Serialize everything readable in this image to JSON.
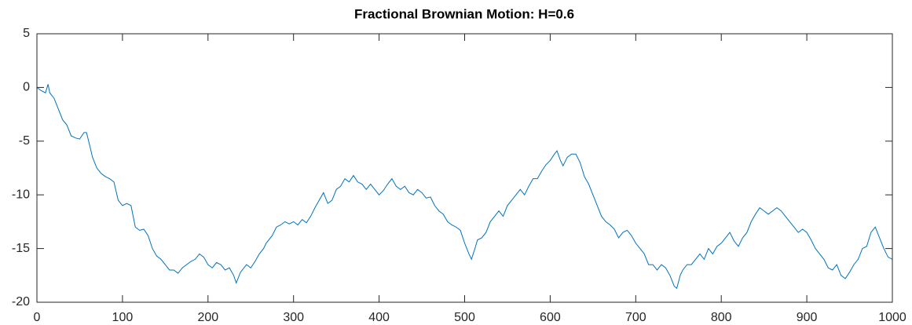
{
  "chart_data": {
    "type": "line",
    "title": "Fractional Brownian Motion: H=0.6",
    "color": "#0072bd",
    "x": [
      0,
      5,
      10,
      13,
      15,
      20,
      25,
      30,
      35,
      40,
      45,
      50,
      55,
      58,
      62,
      65,
      70,
      75,
      80,
      85,
      90,
      95,
      100,
      105,
      110,
      115,
      120,
      125,
      130,
      135,
      140,
      145,
      150,
      155,
      160,
      165,
      170,
      175,
      180,
      185,
      190,
      195,
      200,
      205,
      210,
      215,
      220,
      225,
      230,
      233,
      238,
      245,
      250,
      255,
      260,
      265,
      268,
      275,
      280,
      285,
      290,
      295,
      300,
      305,
      310,
      315,
      320,
      325,
      330,
      335,
      340,
      345,
      350,
      355,
      360,
      365,
      370,
      375,
      380,
      385,
      390,
      395,
      400,
      405,
      410,
      415,
      420,
      425,
      430,
      435,
      440,
      445,
      450,
      455,
      460,
      465,
      470,
      475,
      480,
      485,
      490,
      495,
      500,
      505,
      508,
      512,
      515,
      520,
      525,
      530,
      535,
      540,
      545,
      550,
      555,
      560,
      565,
      570,
      575,
      580,
      585,
      590,
      595,
      600,
      605,
      608,
      612,
      615,
      620,
      625,
      630,
      635,
      640,
      645,
      650,
      655,
      660,
      665,
      670,
      675,
      680,
      685,
      690,
      695,
      700,
      705,
      710,
      715,
      720,
      725,
      730,
      735,
      740,
      745,
      748,
      752,
      755,
      760,
      765,
      770,
      775,
      780,
      785,
      790,
      795,
      800,
      805,
      810,
      815,
      820,
      825,
      830,
      835,
      840,
      845,
      850,
      855,
      860,
      865,
      870,
      875,
      880,
      885,
      890,
      895,
      900,
      905,
      910,
      915,
      920,
      925,
      930,
      935,
      940,
      945,
      950,
      955,
      960,
      965,
      970,
      975,
      980,
      985,
      990,
      995,
      1000
    ],
    "values": [
      0,
      -0.3,
      -0.5,
      0.3,
      -0.5,
      -1,
      -2,
      -3,
      -3.5,
      -4.5,
      -4.7,
      -4.8,
      -4.2,
      -4.2,
      -5.5,
      -6.5,
      -7.5,
      -8,
      -8.3,
      -8.5,
      -8.8,
      -10.5,
      -11,
      -10.8,
      -11,
      -13,
      -13.3,
      -13.2,
      -13.8,
      -15,
      -15.7,
      -16,
      -16.5,
      -17,
      -17,
      -17.3,
      -16.8,
      -16.5,
      -16.2,
      -16,
      -15.5,
      -15.8,
      -16.5,
      -16.8,
      -16.3,
      -16.5,
      -17,
      -16.8,
      -17.5,
      -18.2,
      -17.2,
      -16.5,
      -16.8,
      -16.2,
      -15.5,
      -15,
      -14.5,
      -13.8,
      -13,
      -12.8,
      -12.5,
      -12.7,
      -12.5,
      -12.8,
      -12.3,
      -12.6,
      -12,
      -11.2,
      -10.5,
      -9.8,
      -10.8,
      -10.5,
      -9.5,
      -9.2,
      -8.5,
      -8.8,
      -8.2,
      -8.8,
      -9,
      -9.5,
      -9,
      -9.5,
      -10,
      -9.6,
      -9,
      -8.5,
      -9.2,
      -9.5,
      -9.2,
      -9.8,
      -10,
      -9.5,
      -9.8,
      -10.3,
      -10.2,
      -11,
      -11.5,
      -11.8,
      -12.5,
      -12.8,
      -13,
      -13.3,
      -14.5,
      -15.5,
      -16,
      -15,
      -14.2,
      -14,
      -13.5,
      -12.5,
      -12,
      -11.5,
      -12,
      -11,
      -10.5,
      -10,
      -9.5,
      -10,
      -9.2,
      -8.5,
      -8.5,
      -7.8,
      -7.2,
      -6.8,
      -6.2,
      -5.9,
      -6.8,
      -7.3,
      -6.5,
      -6.2,
      -6.2,
      -7,
      -8.3,
      -9,
      -10,
      -11,
      -12,
      -12.5,
      -12.8,
      -13.2,
      -14,
      -13.5,
      -13.3,
      -13.8,
      -14.5,
      -15,
      -15.5,
      -16.5,
      -16.5,
      -17,
      -16.5,
      -16.8,
      -17.5,
      -18.5,
      -18.7,
      -17.5,
      -17,
      -16.5,
      -16.5,
      -16,
      -15.5,
      -16,
      -15,
      -15.5,
      -14.8,
      -14.5,
      -14,
      -13.5,
      -14.3,
      -14.8,
      -14,
      -13.5,
      -12.5,
      -11.8,
      -11.2,
      -11.5,
      -11.8,
      -11.5,
      -11.2,
      -11.5,
      -12,
      -12.5,
      -13,
      -13.5,
      -13.2,
      -13.5,
      -14.2,
      -15,
      -15.5,
      -16,
      -16.8,
      -17,
      -16.5,
      -17.5,
      -17.8,
      -17.2,
      -16.5,
      -16,
      -15,
      -14.8,
      -13.5,
      -13,
      -14,
      -15,
      -15.8,
      -16
    ],
    "xlim": [
      0,
      1000
    ],
    "xticks": [
      0,
      100,
      200,
      300,
      400,
      500,
      600,
      700,
      800,
      900,
      1000
    ],
    "ylim": [
      -20,
      5
    ],
    "yticks": [
      -20,
      -15,
      -10,
      -5,
      0,
      5
    ],
    "grid": false
  }
}
